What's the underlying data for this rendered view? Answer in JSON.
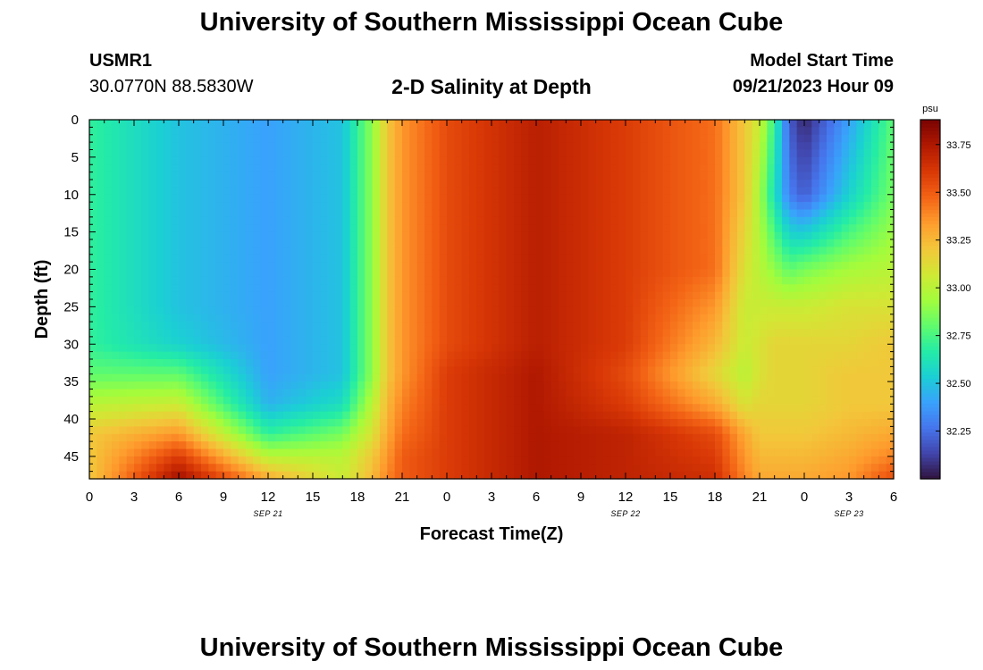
{
  "page": {
    "title_top": "University of Southern Mississippi Ocean Cube",
    "title_bottom": "University of Southern Mississippi Ocean Cube",
    "station_id": "USMR1",
    "station_coords": "30.0770N  88.5830W",
    "plot_title": "2-D Salinity at Depth",
    "model_start_label": "Model Start Time",
    "model_start_value": "09/21/2023 Hour 09"
  },
  "colors": {
    "colormap": [
      "#30123b",
      "#4145ab",
      "#4675ed",
      "#39a2fc",
      "#1bcfd4",
      "#24eca6",
      "#61fc6c",
      "#a4fc3b",
      "#d1e834",
      "#f3c63a",
      "#fe9b2d",
      "#f36315",
      "#d93806",
      "#b11901",
      "#7a0403"
    ]
  },
  "chart_data": {
    "type": "heatmap",
    "xlabel": "Forecast Time(Z)",
    "ylabel": "Depth (ft)",
    "x_unit_hours_from_start": [
      0,
      54
    ],
    "x_tick_labels": [
      "0",
      "3",
      "6",
      "9",
      "12",
      "15",
      "18",
      "21",
      "0",
      "3",
      "6",
      "9",
      "12",
      "15",
      "18",
      "21",
      "0",
      "3",
      "6"
    ],
    "date_labels": [
      {
        "label": "SEP 21",
        "at_tick": "12"
      },
      {
        "label": "SEP 22",
        "at_tick": "12"
      },
      {
        "label": "SEP 23",
        "at_tick": "3"
      }
    ],
    "y_tick_labels": [
      "0",
      "5",
      "10",
      "15",
      "20",
      "25",
      "30",
      "35",
      "40",
      "45"
    ],
    "ylim": [
      0,
      48
    ],
    "y_inverted": true,
    "colorbar": {
      "unit": "psu",
      "range": [
        32.0,
        33.88
      ],
      "ticks": [
        "32.25",
        "32.50",
        "32.75",
        "33.00",
        "33.25",
        "33.50",
        "33.75"
      ]
    },
    "grid_times_hours": [
      0,
      6,
      12,
      17,
      19,
      20,
      21,
      24,
      30,
      36,
      42,
      44,
      45,
      46,
      47,
      48,
      51,
      54
    ],
    "grid_depths_ft": [
      0,
      10,
      20,
      25,
      30,
      34,
      38,
      42,
      45,
      48
    ],
    "salinity_psu": [
      [
        32.7,
        32.7,
        32.7,
        32.7,
        32.7,
        32.8,
        33.0,
        33.2,
        33.2,
        33.2
      ],
      [
        32.5,
        32.5,
        32.5,
        32.5,
        32.55,
        32.8,
        33.05,
        33.35,
        33.6,
        33.8
      ],
      [
        32.4,
        32.4,
        32.4,
        32.4,
        32.4,
        32.4,
        32.45,
        32.7,
        33.0,
        33.3
      ],
      [
        32.5,
        32.5,
        32.5,
        32.5,
        32.5,
        32.5,
        32.6,
        32.85,
        33.0,
        33.05
      ],
      [
        32.9,
        32.9,
        32.9,
        32.9,
        32.9,
        32.9,
        33.0,
        33.1,
        33.2,
        33.25
      ],
      [
        33.2,
        33.2,
        33.2,
        33.2,
        33.2,
        33.2,
        33.25,
        33.3,
        33.35,
        33.4
      ],
      [
        33.35,
        33.35,
        33.35,
        33.35,
        33.35,
        33.35,
        33.4,
        33.45,
        33.5,
        33.5
      ],
      [
        33.55,
        33.55,
        33.55,
        33.55,
        33.55,
        33.6,
        33.6,
        33.6,
        33.6,
        33.6
      ],
      [
        33.72,
        33.72,
        33.72,
        33.72,
        33.72,
        33.75,
        33.75,
        33.75,
        33.75,
        33.75
      ],
      [
        33.6,
        33.6,
        33.6,
        33.6,
        33.6,
        33.55,
        33.6,
        33.7,
        33.7,
        33.7
      ],
      [
        33.45,
        33.45,
        33.45,
        33.35,
        33.25,
        33.15,
        33.3,
        33.55,
        33.6,
        33.65
      ],
      [
        33.2,
        33.2,
        33.1,
        33.05,
        33.05,
        33.0,
        33.1,
        33.3,
        33.35,
        33.4
      ],
      [
        33.05,
        32.95,
        33.0,
        33.05,
        33.1,
        33.1,
        33.15,
        33.2,
        33.25,
        33.3
      ],
      [
        32.7,
        32.6,
        32.9,
        33.05,
        33.15,
        33.15,
        33.15,
        33.2,
        33.25,
        33.3
      ],
      [
        32.2,
        32.3,
        32.8,
        33.05,
        33.15,
        33.15,
        33.15,
        33.2,
        33.25,
        33.3
      ],
      [
        32.05,
        32.2,
        32.85,
        33.05,
        33.15,
        33.15,
        33.15,
        33.2,
        33.25,
        33.3
      ],
      [
        32.4,
        32.55,
        32.95,
        33.1,
        33.15,
        33.2,
        33.2,
        33.25,
        33.3,
        33.35
      ],
      [
        32.8,
        32.85,
        33.0,
        33.1,
        33.2,
        33.2,
        33.2,
        33.3,
        33.4,
        33.55
      ]
    ]
  }
}
